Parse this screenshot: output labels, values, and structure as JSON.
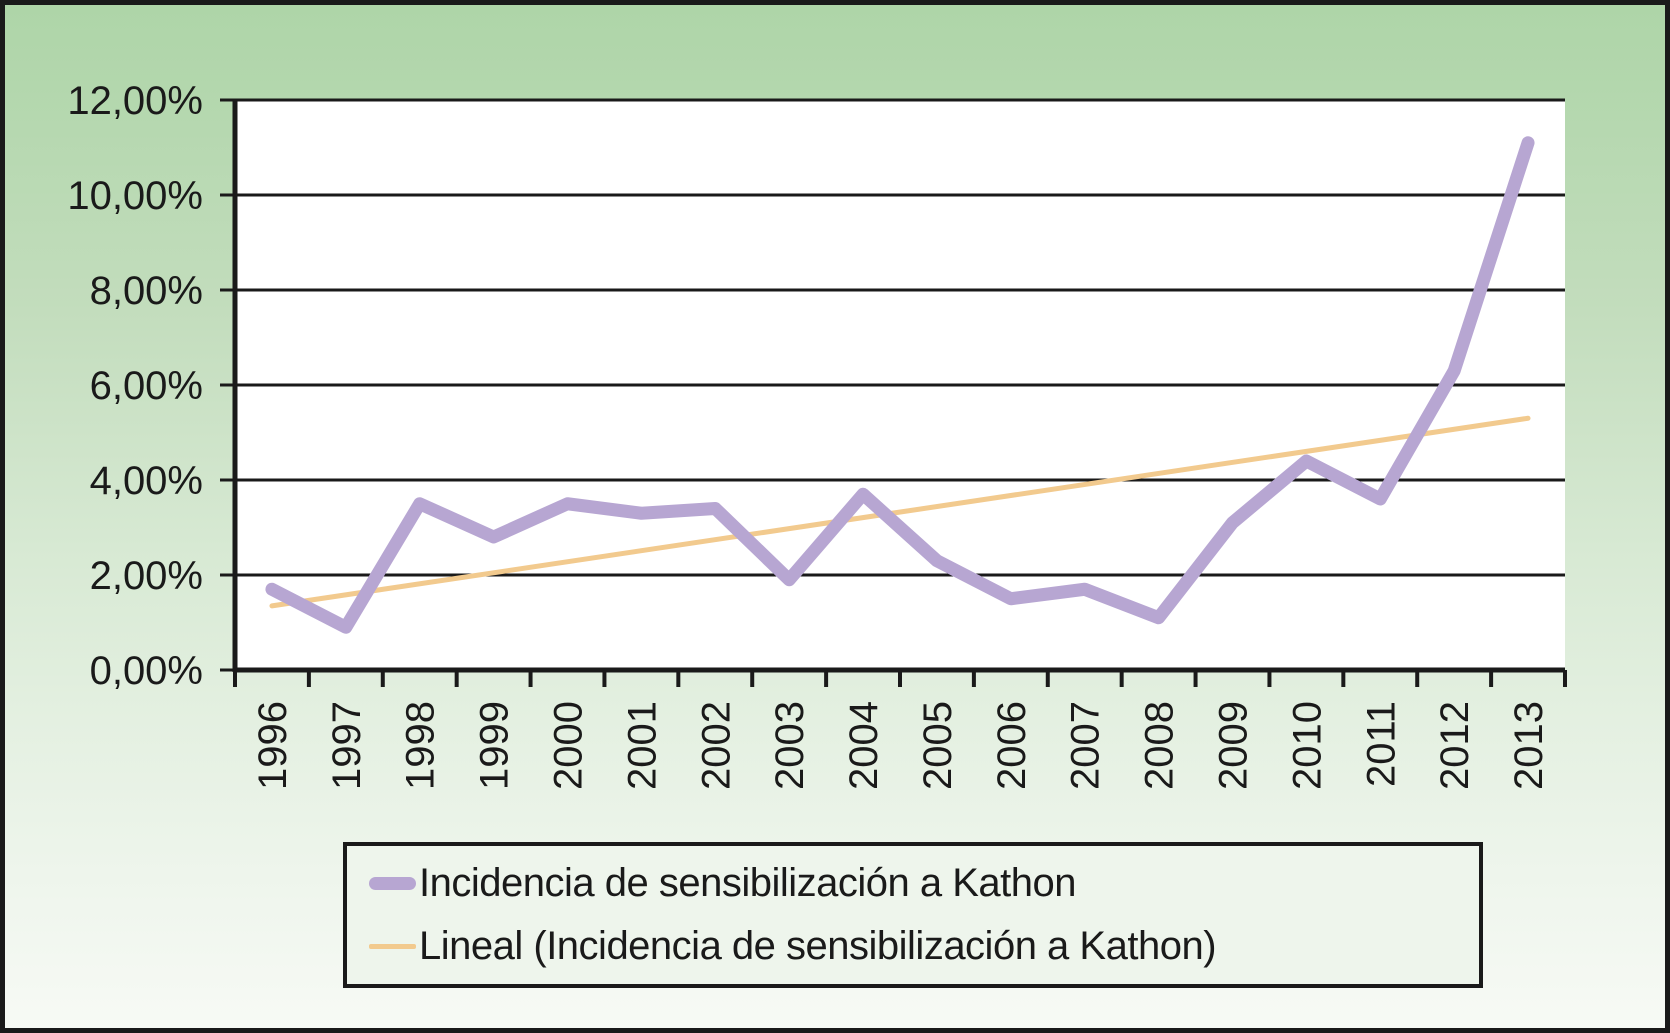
{
  "chart_data": {
    "type": "line",
    "title": "",
    "xlabel": "",
    "ylabel": "",
    "categories": [
      "1996",
      "1997",
      "1998",
      "1999",
      "2000",
      "2001",
      "2002",
      "2003",
      "2004",
      "2005",
      "2006",
      "2007",
      "2008",
      "2009",
      "2010",
      "2011",
      "2012",
      "2013"
    ],
    "series": [
      {
        "name": "Incidencia de sensibilización a Kathon",
        "type": "line",
        "color": "#b7a6d2",
        "values": [
          1.7,
          0.9,
          3.5,
          2.8,
          3.5,
          3.3,
          3.4,
          1.9,
          3.7,
          2.3,
          1.5,
          1.7,
          1.1,
          3.1,
          4.4,
          3.6,
          6.3,
          11.1
        ]
      },
      {
        "name": "Lineal (Incidencia de sensibilización a Kathon)",
        "type": "linear-trendline",
        "color": "#f2ca8e",
        "trend": {
          "start": 1.35,
          "end": 5.3
        }
      }
    ],
    "y_tick_labels": [
      "12,00%",
      "10,00%",
      "8,00%",
      "6,00%",
      "4,00%",
      "2,00%",
      "0,00%"
    ],
    "y_tick_values": [
      12,
      10,
      8,
      6,
      4,
      2,
      0
    ],
    "ylim": [
      0,
      12
    ],
    "x_label_rotation_degrees": -90,
    "grid": "horizontal",
    "legend_position": "bottom"
  },
  "legend": {
    "items": [
      {
        "label": "Incidencia de sensibilización a Kathon",
        "swatch": "thick-purple-line"
      },
      {
        "label": "Lineal (Incidencia de sensibilización a Kathon)",
        "swatch": "thin-orange-line"
      }
    ]
  },
  "colors": {
    "series_line": "#b7a6d2",
    "trend_line": "#f2ca8e",
    "grid_line": "#1a1a1a",
    "axis_line": "#1a1a1a",
    "tick_mark": "#1a1a1a",
    "label_text": "#1a1a1a",
    "plot_background": "#ffffff",
    "frame_background_top": "#aed5a8",
    "frame_background_bottom": "#f7faf5",
    "frame_border": "#1a1a1a",
    "legend_background": "#eef5ec",
    "legend_border": "#1a1a1a"
  }
}
